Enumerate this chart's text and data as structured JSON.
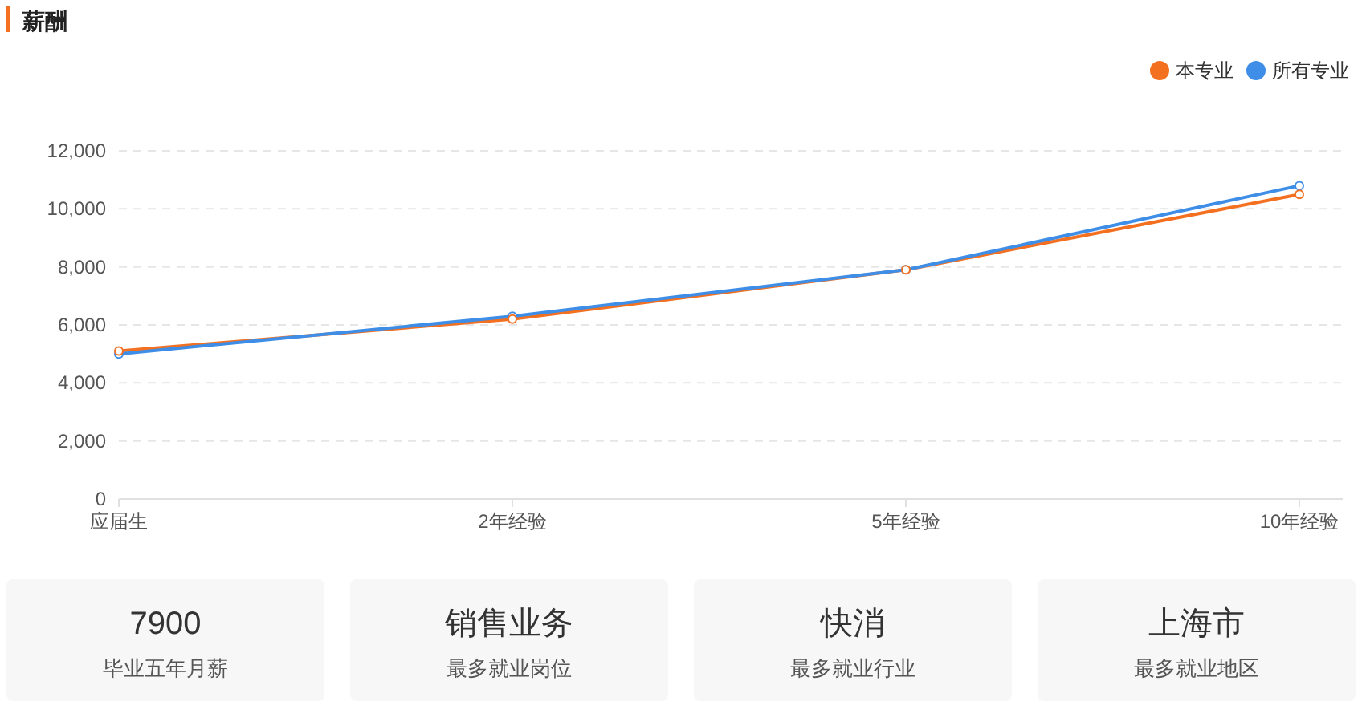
{
  "chart_data": [
    {
      "type": "line",
      "title": "薪酬",
      "categories": [
        "应届生",
        "2年经验",
        "5年经验",
        "10年经验"
      ],
      "series": [
        {
          "name": "本专业",
          "color": "#f37021",
          "values": [
            5100,
            6200,
            7900,
            10500
          ]
        },
        {
          "name": "所有专业",
          "color": "#3e8ee8",
          "values": [
            5000,
            6300,
            7900,
            10800
          ]
        }
      ],
      "ylim": [
        0,
        12000
      ],
      "yticks": [
        {
          "value": 0,
          "label": "0"
        },
        {
          "value": 2000,
          "label": "2,000"
        },
        {
          "value": 4000,
          "label": "4,000"
        },
        {
          "value": 6000,
          "label": "6,000"
        },
        {
          "value": 8000,
          "label": "8,000"
        },
        {
          "value": 10000,
          "label": "10,000"
        },
        {
          "value": 12000,
          "label": "12,000"
        }
      ],
      "grid": "y",
      "legend": "top right",
      "marker": "circle",
      "line_style": "solid"
    },
    {
      "type": "other",
      "annotations": [
        "7900",
        "毕业五年月薪"
      ]
    },
    {
      "type": "other",
      "annotations": [
        "销售业务",
        "最多就业岗位"
      ]
    },
    {
      "type": "other",
      "annotations": [
        "快消",
        "最多就业行业"
      ]
    },
    {
      "type": "other",
      "annotations": [
        "上海市",
        "最多就业地区"
      ]
    }
  ]
}
